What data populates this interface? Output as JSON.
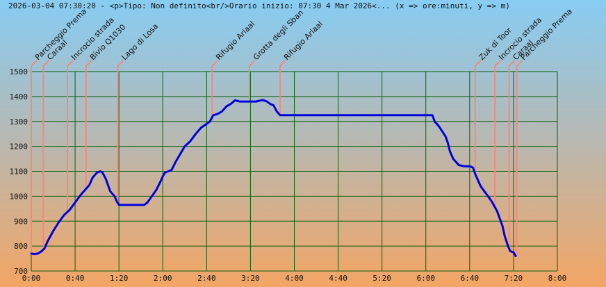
{
  "header": {
    "title": "2026-03-04 07:30:20 - <p>Tipo: Non definito<br/>Orario inizio: 07:30 4 Mar 2026<... (x => ore:minuti, y => m)"
  },
  "colors": {
    "grid": "#0b5e0b",
    "line": "#0000dd",
    "marker": "#f08a80",
    "gradient_top": "#87ccf3",
    "gradient_bottom": "#f3a564"
  },
  "chart_data": {
    "type": "line",
    "title": "",
    "xlabel": "",
    "ylabel": "",
    "x_unit": "minutes",
    "xlim": [
      0,
      480
    ],
    "ylim": [
      700,
      1500
    ],
    "x_ticks": [
      {
        "v": 0,
        "label": "0:00"
      },
      {
        "v": 40,
        "label": "0:40"
      },
      {
        "v": 80,
        "label": "1:20"
      },
      {
        "v": 120,
        "label": "2:00"
      },
      {
        "v": 160,
        "label": "2:40"
      },
      {
        "v": 200,
        "label": "3:20"
      },
      {
        "v": 240,
        "label": "4:00"
      },
      {
        "v": 280,
        "label": "4:40"
      },
      {
        "v": 320,
        "label": "5:20"
      },
      {
        "v": 360,
        "label": "6:00"
      },
      {
        "v": 400,
        "label": "6:40"
      },
      {
        "v": 440,
        "label": "7:20"
      },
      {
        "v": 480,
        "label": "8:00"
      }
    ],
    "y_ticks": [
      700,
      800,
      900,
      1000,
      1100,
      1200,
      1300,
      1400,
      1500
    ],
    "series": [
      {
        "x": [
          0,
          3,
          6,
          9,
          12,
          15,
          20,
          25,
          30,
          35,
          40,
          45,
          48,
          50,
          53,
          56,
          60,
          63,
          65,
          68,
          70,
          72,
          74,
          76,
          78,
          80,
          82,
          85,
          90,
          95,
          100,
          103,
          106,
          110,
          114,
          118,
          120,
          122,
          125,
          128,
          132,
          136,
          140,
          145,
          150,
          155,
          160,
          163,
          166,
          170,
          174,
          178,
          182,
          186,
          190,
          195,
          200,
          205,
          210,
          212,
          215,
          218,
          221,
          224,
          227,
          230,
          240,
          260,
          280,
          300,
          320,
          340,
          360,
          366,
          368,
          370,
          372,
          375,
          378,
          380,
          382,
          385,
          390,
          395,
          400,
          403,
          405,
          408,
          410,
          415,
          420,
          425,
          430,
          432,
          435,
          437,
          440,
          442
        ],
        "y": [
          770,
          768,
          770,
          778,
          790,
          820,
          860,
          895,
          925,
          945,
          975,
          1005,
          1020,
          1030,
          1045,
          1075,
          1095,
          1100,
          1095,
          1070,
          1045,
          1020,
          1010,
          1000,
          980,
          965,
          965,
          965,
          965,
          965,
          965,
          965,
          975,
          1000,
          1025,
          1060,
          1080,
          1095,
          1100,
          1105,
          1140,
          1170,
          1200,
          1220,
          1250,
          1275,
          1290,
          1300,
          1325,
          1330,
          1340,
          1360,
          1370,
          1385,
          1380,
          1380,
          1380,
          1380,
          1385,
          1385,
          1380,
          1370,
          1365,
          1340,
          1325,
          1325,
          1325,
          1325,
          1325,
          1325,
          1325,
          1325,
          1325,
          1325,
          1300,
          1290,
          1280,
          1260,
          1240,
          1215,
          1180,
          1150,
          1125,
          1120,
          1120,
          1115,
          1090,
          1060,
          1040,
          1010,
          980,
          940,
          880,
          840,
          800,
          780,
          775,
          760
        ]
      }
    ],
    "waypoints": [
      {
        "t": 0,
        "label": "Parcheggio Prema"
      },
      {
        "t": 11,
        "label": "Caraal"
      },
      {
        "t": 33,
        "label": "Incrocio strada"
      },
      {
        "t": 50,
        "label": "Bivio Q1030"
      },
      {
        "t": 79,
        "label": "Lago di Losa"
      },
      {
        "t": 165,
        "label": "Rifugio Ariaal"
      },
      {
        "t": 199,
        "label": "Grotta degli Sban"
      },
      {
        "t": 227,
        "label": "Rifugio Ariaal"
      },
      {
        "t": 405,
        "label": "Zuk di Toor"
      },
      {
        "t": 423,
        "label": "Incrocio strada"
      },
      {
        "t": 436,
        "label": "Caraal"
      },
      {
        "t": 443,
        "label": "Parcheggio Prema"
      }
    ]
  }
}
